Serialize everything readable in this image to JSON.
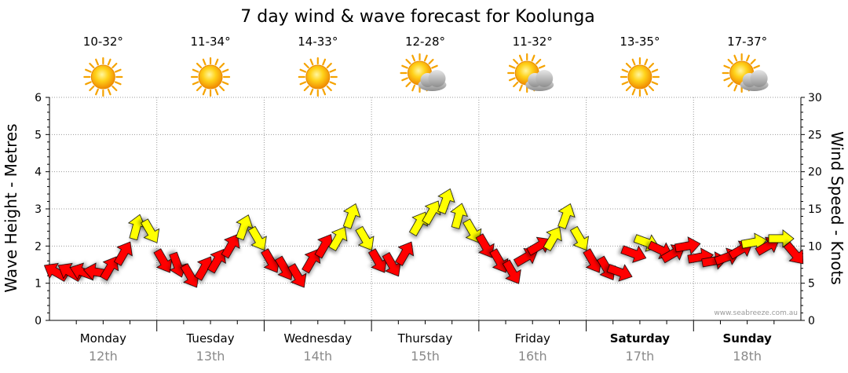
{
  "page": {
    "title": "7 day wind & wave forecast for Koolunga",
    "credit": "www.seabreeze.com.au"
  },
  "colors": {
    "calm_arrow": "#ff0000",
    "moderate_arrow": "#ffff00",
    "arrow_outline": "#000000",
    "grid": "#9a9a9a",
    "date_text": "#8a8a8a"
  },
  "chart_data": {
    "type": "line",
    "title": "7 day wind & wave forecast for Koolunga",
    "ylabel_left": "Wave Height - Metres",
    "ylabel_right": "Wind Speed - Knots",
    "left_ylim": [
      0,
      6
    ],
    "right_ylim": [
      0,
      30
    ],
    "left_ticks": [
      "0",
      "1",
      "2",
      "3",
      "4",
      "5",
      "6"
    ],
    "right_ticks": [
      "0",
      "5",
      "10",
      "15",
      "20",
      "25",
      "30"
    ],
    "grid": true,
    "legend": "none",
    "yellow_threshold_knots": 10,
    "days": [
      {
        "name": "Monday",
        "date": "12th",
        "temp": "10-32°",
        "weather": "sunny-icon",
        "bold": false
      },
      {
        "name": "Tuesday",
        "date": "13th",
        "temp": "11-34°",
        "weather": "sunny-icon",
        "bold": false
      },
      {
        "name": "Wednesday",
        "date": "14th",
        "temp": "14-33°",
        "weather": "sunny-icon",
        "bold": false
      },
      {
        "name": "Thursday",
        "date": "15th",
        "temp": "12-28°",
        "weather": "partly-cloudy-icon",
        "bold": false
      },
      {
        "name": "Friday",
        "date": "16th",
        "temp": "11-32°",
        "weather": "partly-cloudy-icon",
        "bold": false
      },
      {
        "name": "Saturday",
        "date": "17th",
        "temp": "13-35°",
        "weather": "sunny-icon",
        "bold": true
      },
      {
        "name": "Sunday",
        "date": "18th",
        "temp": "17-37°",
        "weather": "partly-cloudy-icon",
        "bold": true
      }
    ],
    "wind_series": {
      "name": "Wind Speed (knots) and direction (arrow heading, degrees clockwise from north)",
      "samples_per_day": 8,
      "time_days": [
        0.06,
        0.19,
        0.31,
        0.44,
        0.56,
        0.69,
        0.81,
        0.94,
        1.06,
        1.19,
        1.31,
        1.44,
        1.56,
        1.69,
        1.81,
        1.94,
        2.06,
        2.19,
        2.31,
        2.44,
        2.56,
        2.69,
        2.81,
        2.94,
        3.06,
        3.19,
        3.31,
        3.44,
        3.56,
        3.69,
        3.81,
        3.94,
        4.06,
        4.19,
        4.31,
        4.44,
        4.56,
        4.69,
        4.81,
        4.94,
        5.06,
        5.19,
        5.31,
        5.44,
        5.56,
        5.69,
        5.81,
        5.94,
        6.06,
        6.19,
        6.31,
        6.44,
        6.56,
        6.69,
        6.81,
        6.94
      ],
      "speed_knots": [
        6.5,
        6.5,
        6.5,
        6.5,
        7,
        9,
        12.5,
        12,
        8,
        7.5,
        6,
        7,
        8,
        10,
        12.5,
        11,
        8,
        7,
        6,
        8,
        10,
        11,
        14,
        11,
        8,
        7.5,
        9,
        13,
        14.5,
        16,
        14,
        12,
        10,
        8,
        6.5,
        8.5,
        10,
        11,
        14,
        11,
        8,
        7,
        6.5,
        9,
        10.5,
        9.5,
        9,
        10,
        8.5,
        8,
        8.5,
        9.5,
        10.5,
        10,
        11,
        9
      ],
      "direction_deg": [
        300,
        300,
        290,
        280,
        30,
        30,
        15,
        150,
        150,
        160,
        150,
        30,
        30,
        30,
        20,
        150,
        150,
        150,
        150,
        30,
        30,
        30,
        20,
        150,
        150,
        150,
        30,
        30,
        30,
        20,
        15,
        150,
        150,
        150,
        150,
        60,
        60,
        30,
        20,
        150,
        150,
        150,
        110,
        110,
        110,
        115,
        60,
        80,
        80,
        80,
        70,
        60,
        80,
        60,
        90,
        140
      ]
    }
  }
}
